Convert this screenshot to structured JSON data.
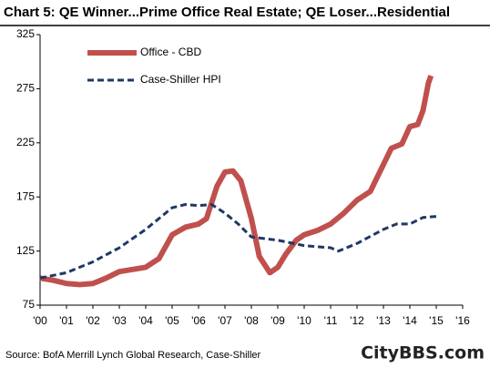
{
  "chart_data": {
    "type": "line",
    "title": "Chart 5: QE Winner...Prime Office Real Estate; QE Loser...Residential",
    "source": "Source: BofA Merrill Lynch Global Research, Case-Shiller",
    "watermark": "CityBBS.com",
    "xlim": [
      0,
      16
    ],
    "xticks": [
      {
        "value": 0,
        "label": "'00"
      },
      {
        "value": 1,
        "label": "'01"
      },
      {
        "value": 2,
        "label": "'02"
      },
      {
        "value": 3,
        "label": "'03"
      },
      {
        "value": 4,
        "label": "'04"
      },
      {
        "value": 5,
        "label": "'05"
      },
      {
        "value": 6,
        "label": "'06"
      },
      {
        "value": 7,
        "label": "'07"
      },
      {
        "value": 8,
        "label": "'08"
      },
      {
        "value": 9,
        "label": "'09"
      },
      {
        "value": 10,
        "label": "'10"
      },
      {
        "value": 11,
        "label": "'11"
      },
      {
        "value": 12,
        "label": "'12"
      },
      {
        "value": 13,
        "label": "'13"
      },
      {
        "value": 14,
        "label": "'14"
      },
      {
        "value": 15,
        "label": "'15"
      },
      {
        "value": 16,
        "label": "'16"
      }
    ],
    "ylim": [
      75,
      325
    ],
    "yticks": [
      75,
      125,
      175,
      225,
      275,
      325
    ],
    "grid": false,
    "series": [
      {
        "name": "Office - CBD",
        "color": "#c0504d",
        "style": "solid",
        "x": [
          0,
          0.5,
          1,
          1.5,
          2,
          2.5,
          3,
          3.5,
          4,
          4.5,
          5,
          5.5,
          6,
          6.3,
          6.7,
          7,
          7.3,
          7.6,
          8,
          8.3,
          8.7,
          9,
          9.3,
          9.7,
          10,
          10.5,
          11,
          11.5,
          12,
          12.5,
          13,
          13.3,
          13.7,
          14,
          14.3,
          14.5,
          14.7,
          14.8
        ],
        "values": [
          100,
          98,
          95,
          94,
          95,
          100,
          106,
          108,
          110,
          118,
          140,
          147,
          150,
          155,
          185,
          198,
          199,
          190,
          155,
          120,
          105,
          110,
          122,
          135,
          140,
          144,
          150,
          160,
          172,
          180,
          205,
          220,
          224,
          240,
          242,
          255,
          280,
          287
        ]
      },
      {
        "name": "Case-Shiller HPI",
        "color": "#1f3864",
        "style": "dashed",
        "x": [
          0,
          1,
          2,
          3,
          4,
          5,
          5.5,
          6,
          6.5,
          7,
          7.5,
          8,
          9,
          10,
          11,
          11.3,
          12,
          13,
          13.5,
          14,
          14.5,
          15
        ],
        "values": [
          100,
          105,
          115,
          128,
          145,
          165,
          168,
          167,
          168,
          160,
          150,
          138,
          135,
          130,
          128,
          125,
          132,
          145,
          150,
          150,
          156,
          157
        ]
      }
    ]
  }
}
